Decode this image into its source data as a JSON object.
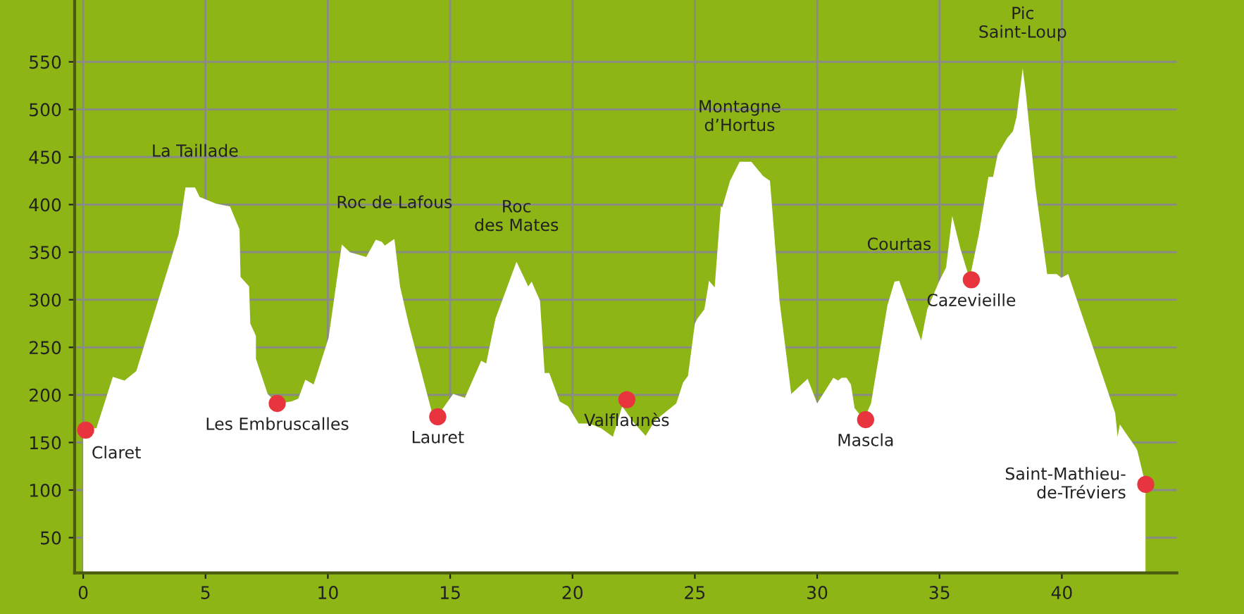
{
  "chart_data": {
    "type": "area",
    "series": [
      {
        "color": "#ffffff",
        "x": [
          0,
          0.54,
          1.21,
          1.69,
          2.17,
          3.9,
          4.18,
          4.57,
          4.76,
          5.43,
          6.0,
          6.39,
          6.43,
          6.78,
          6.83,
          7.06,
          7.06,
          7.54,
          7.93,
          8.5,
          8.79,
          9.08,
          9.42,
          10.03,
          10.57,
          10.9,
          11.57,
          11.96,
          12.2,
          12.33,
          12.72,
          12.95,
          13.3,
          14.26,
          14.49,
          15.12,
          15.6,
          16.27,
          16.47,
          16.85,
          17.71,
          18.19,
          18.33,
          18.67,
          18.86,
          19.05,
          19.48,
          19.82,
          20.25,
          20.69,
          21.17,
          21.65,
          22.03,
          22.5,
          22.99,
          23.37,
          24.24,
          24.52,
          24.72,
          25.0,
          25.1,
          25.39,
          25.58,
          25.81,
          26.06,
          26.12,
          26.44,
          26.83,
          27.31,
          27.79,
          28.07,
          28.17,
          28.46,
          28.94,
          29.61,
          30.0,
          30.66,
          30.86,
          31.0,
          31.2,
          31.38,
          31.53,
          31.91,
          32.2,
          32.87,
          33.16,
          33.35,
          34.25,
          34.5,
          34.98,
          35.27,
          35.52,
          35.85,
          36.23,
          36.61,
          37.0,
          37.19,
          37.38,
          37.77,
          38.0,
          38.15,
          38.4,
          38.53,
          38.92,
          39.4,
          39.79,
          39.98,
          40.26,
          42.18,
          42.28,
          42.37,
          43.04,
          43.09,
          43.42
        ],
        "values": [
          165,
          165,
          219,
          215,
          225,
          369,
          418,
          418,
          408,
          401,
          398,
          374,
          324,
          314,
          275,
          262,
          238,
          201,
          191,
          193,
          196,
          216,
          211,
          260,
          358,
          350,
          345,
          363,
          361,
          357,
          364,
          314,
          275,
          181,
          178,
          201,
          197,
          236,
          233,
          280,
          340,
          314,
          319,
          299,
          223,
          223,
          193,
          188,
          170,
          170,
          165,
          156,
          188,
          171,
          157,
          173,
          191,
          213,
          220,
          275,
          280,
          290,
          320,
          313,
          398,
          397,
          425,
          445,
          445,
          430,
          425,
          393,
          299,
          201,
          217,
          191,
          218,
          215,
          218,
          218,
          211,
          186,
          174,
          191,
          294,
          319,
          320,
          257,
          290,
          319,
          334,
          388,
          354,
          322,
          369,
          429,
          429,
          453,
          470,
          477,
          492,
          543,
          517,
          418,
          327,
          327,
          323,
          327,
          181,
          156,
          169,
          144,
          141,
          106
        ]
      },
      {
        "type": "scatter",
        "color": "#e8343e",
        "marker": "circle",
        "x": [
          0.1,
          7.93,
          14.49,
          22.22,
          31.98,
          36.3,
          43.43
        ],
        "values": [
          163,
          191,
          177,
          195,
          174,
          321,
          106
        ]
      }
    ],
    "xlim": [
      -0.35,
      44.7
    ],
    "ylim": [
      13,
      615
    ],
    "xticks": [
      0,
      5,
      10,
      15,
      20,
      25,
      30,
      35,
      40
    ],
    "yticks": [
      50,
      100,
      150,
      200,
      250,
      300,
      350,
      400,
      450,
      500,
      550
    ],
    "grid": true,
    "annotations": [
      {
        "text": "La Taillade",
        "x": 4.57,
        "y": 418
      },
      {
        "text": "Roc de Lafous",
        "x": 12.72,
        "y": 364
      },
      {
        "text": "Roc\ndes Mates",
        "x": 17.71,
        "y": 340
      },
      {
        "text": "Montagne\nd’Hortus",
        "x": 26.83,
        "y": 445
      },
      {
        "text": "Courtas",
        "x": 33.35,
        "y": 320
      },
      {
        "text": "Pic\nSaint-Loup",
        "x": 38.4,
        "y": 543
      },
      {
        "text": "Claret",
        "x": 0.1,
        "y": 163
      },
      {
        "text": "Les Embruscalles",
        "x": 7.93,
        "y": 191
      },
      {
        "text": "Lauret",
        "x": 14.49,
        "y": 177
      },
      {
        "text": "Valflaunès",
        "x": 22.22,
        "y": 195
      },
      {
        "text": "Mascla",
        "x": 31.98,
        "y": 174
      },
      {
        "text": "Cazevieille",
        "x": 36.3,
        "y": 321
      },
      {
        "text": "Saint-Mathieu-\nde-Tréviers",
        "x": 43.43,
        "y": 106
      }
    ]
  }
}
